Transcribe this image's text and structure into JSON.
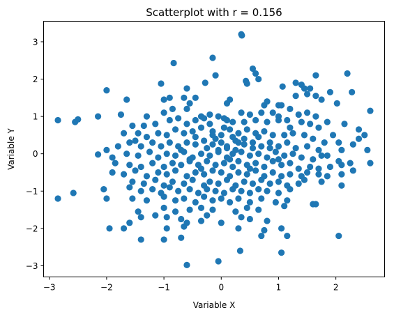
{
  "chart_data": {
    "type": "scatter",
    "title": "Scatterplot with r = 0.156",
    "xlabel": "Variable X",
    "ylabel": "Variable Y",
    "xlim": [
      -3.1,
      2.85
    ],
    "ylim": [
      -3.3,
      3.55
    ],
    "xticks": [
      -3,
      -2,
      -1,
      0,
      1,
      2
    ],
    "yticks": [
      -3,
      -2,
      -1,
      0,
      1,
      2,
      3
    ],
    "grid": false,
    "marker_color": "#1f77b4",
    "points": [
      [
        0.35,
        3.2
      ],
      [
        0.36,
        3.17
      ],
      [
        -0.15,
        2.57
      ],
      [
        -0.83,
        2.43
      ],
      [
        2.2,
        2.15
      ],
      [
        0.55,
        2.28
      ],
      [
        -0.1,
        2.1
      ],
      [
        1.65,
        2.1
      ],
      [
        0.6,
        2.15
      ],
      [
        -2.0,
        1.7
      ],
      [
        0.65,
        2.0
      ],
      [
        1.55,
        1.75
      ],
      [
        1.45,
        1.75
      ],
      [
        -1.05,
        1.88
      ],
      [
        1.3,
        1.9
      ],
      [
        1.4,
        1.85
      ],
      [
        0.43,
        1.95
      ],
      [
        0.45,
        1.88
      ],
      [
        2.28,
        1.65
      ],
      [
        1.07,
        1.8
      ],
      [
        -0.6,
        1.75
      ],
      [
        -0.28,
        1.9
      ],
      [
        0.1,
        1.35
      ],
      [
        1.3,
        1.55
      ],
      [
        -0.45,
        1.5
      ],
      [
        -1.65,
        1.45
      ],
      [
        -0.65,
        1.5
      ],
      [
        -0.9,
        1.5
      ],
      [
        -1.0,
        1.45
      ],
      [
        0.15,
        1.45
      ],
      [
        1.75,
        1.45
      ],
      [
        1.5,
        1.6
      ],
      [
        1.65,
        1.55
      ],
      [
        1.9,
        1.65
      ],
      [
        2.02,
        1.35
      ],
      [
        0.8,
        1.4
      ],
      [
        1.0,
        1.3
      ],
      [
        1.05,
        1.3
      ],
      [
        1.2,
        1.2
      ],
      [
        0.75,
        1.3
      ],
      [
        -0.6,
        1.2
      ],
      [
        -0.55,
        1.35
      ],
      [
        -1.45,
        0.55
      ],
      [
        -1.3,
        1.0
      ],
      [
        -1.0,
        1.1
      ],
      [
        -0.85,
        1.2
      ],
      [
        -0.35,
        1.0
      ],
      [
        -0.2,
        1.05
      ],
      [
        -0.05,
        1.0
      ],
      [
        0.35,
        1.1
      ],
      [
        0.5,
        1.05
      ],
      [
        0.7,
        1.1
      ],
      [
        0.9,
        1.1
      ],
      [
        1.0,
        1.0
      ],
      [
        1.15,
        0.9
      ],
      [
        1.35,
        1.05
      ],
      [
        1.5,
        1.1
      ],
      [
        1.65,
        1.0
      ],
      [
        1.85,
        0.85
      ],
      [
        2.15,
        0.8
      ],
      [
        2.4,
        0.65
      ],
      [
        2.5,
        0.5
      ],
      [
        2.4,
        0.4
      ],
      [
        2.6,
        1.15
      ],
      [
        -2.85,
        0.9
      ],
      [
        -2.5,
        0.92
      ],
      [
        -2.55,
        0.85
      ],
      [
        -2.15,
        1.0
      ],
      [
        -1.75,
        1.05
      ],
      [
        -1.55,
        0.75
      ],
      [
        -1.35,
        0.75
      ],
      [
        -1.15,
        0.8
      ],
      [
        -0.9,
        0.9
      ],
      [
        -0.75,
        0.95
      ],
      [
        -0.6,
        0.8
      ],
      [
        -0.45,
        0.9
      ],
      [
        -0.3,
        0.95
      ],
      [
        -0.2,
        0.8
      ],
      [
        0.05,
        0.95
      ],
      [
        0.2,
        0.85
      ],
      [
        0.4,
        0.85
      ],
      [
        0.6,
        0.9
      ],
      [
        0.8,
        0.85
      ],
      [
        1.0,
        0.9
      ],
      [
        1.2,
        0.7
      ],
      [
        1.4,
        0.85
      ],
      [
        1.55,
        0.8
      ],
      [
        1.7,
        0.7
      ],
      [
        1.95,
        0.5
      ],
      [
        2.05,
        0.3
      ],
      [
        -1.7,
        0.55
      ],
      [
        -1.5,
        0.35
      ],
      [
        -1.3,
        0.45
      ],
      [
        -1.1,
        0.55
      ],
      [
        -0.95,
        0.5
      ],
      [
        -0.8,
        0.65
      ],
      [
        -0.65,
        0.55
      ],
      [
        -0.5,
        0.6
      ],
      [
        -0.35,
        0.7
      ],
      [
        -0.15,
        0.6
      ],
      [
        0.0,
        0.5
      ],
      [
        0.15,
        0.65
      ],
      [
        0.3,
        0.55
      ],
      [
        0.45,
        0.65
      ],
      [
        0.6,
        0.55
      ],
      [
        0.75,
        0.6
      ],
      [
        0.9,
        0.5
      ],
      [
        1.1,
        0.5
      ],
      [
        1.25,
        0.55
      ],
      [
        1.45,
        0.5
      ],
      [
        1.6,
        0.4
      ],
      [
        1.8,
        0.3
      ],
      [
        -2.0,
        0.1
      ],
      [
        -1.8,
        0.2
      ],
      [
        -1.6,
        0.3
      ],
      [
        -1.4,
        0.2
      ],
      [
        -1.2,
        0.3
      ],
      [
        -1.05,
        0.2
      ],
      [
        -0.9,
        0.3
      ],
      [
        -0.75,
        0.2
      ],
      [
        -0.6,
        0.3
      ],
      [
        -0.45,
        0.25
      ],
      [
        -0.3,
        0.35
      ],
      [
        -0.15,
        0.25
      ],
      [
        0.0,
        0.3
      ],
      [
        0.1,
        0.2
      ],
      [
        0.25,
        0.35
      ],
      [
        0.4,
        0.25
      ],
      [
        0.55,
        0.3
      ],
      [
        0.7,
        0.2
      ],
      [
        0.85,
        0.3
      ],
      [
        1.0,
        0.2
      ],
      [
        1.15,
        0.3
      ],
      [
        1.3,
        0.15
      ],
      [
        1.5,
        0.2
      ],
      [
        1.7,
        0.1
      ],
      [
        1.85,
        -0.05
      ],
      [
        2.1,
        0.1
      ],
      [
        2.3,
        0.25
      ],
      [
        2.55,
        0.1
      ],
      [
        -2.15,
        -0.02
      ],
      [
        -1.9,
        -0.1
      ],
      [
        -1.65,
        0.0
      ],
      [
        -1.45,
        -0.05
      ],
      [
        -1.25,
        0.05
      ],
      [
        -1.1,
        -0.1
      ],
      [
        -0.95,
        0.0
      ],
      [
        -0.8,
        -0.05
      ],
      [
        -0.65,
        0.05
      ],
      [
        -0.5,
        -0.1
      ],
      [
        -0.35,
        0.0
      ],
      [
        -0.2,
        -0.05
      ],
      [
        -0.05,
        0.05
      ],
      [
        0.1,
        -0.1
      ],
      [
        0.2,
        0.0
      ],
      [
        0.35,
        0.05
      ],
      [
        0.5,
        -0.05
      ],
      [
        0.65,
        0.0
      ],
      [
        0.8,
        -0.1
      ],
      [
        0.95,
        0.05
      ],
      [
        1.1,
        -0.05
      ],
      [
        1.25,
        0.0
      ],
      [
        1.4,
        -0.1
      ],
      [
        1.6,
        -0.15
      ],
      [
        1.75,
        -0.05
      ],
      [
        2.05,
        -0.2
      ],
      [
        2.25,
        -0.25
      ],
      [
        2.6,
        -0.25
      ],
      [
        -1.85,
        -0.25
      ],
      [
        -1.6,
        -0.3
      ],
      [
        -1.4,
        -0.35
      ],
      [
        -1.2,
        -0.25
      ],
      [
        -1.0,
        -0.35
      ],
      [
        -0.85,
        -0.25
      ],
      [
        -0.7,
        -0.3
      ],
      [
        -0.55,
        -0.2
      ],
      [
        -0.4,
        -0.3
      ],
      [
        -0.25,
        -0.2
      ],
      [
        -0.1,
        -0.3
      ],
      [
        0.05,
        -0.25
      ],
      [
        0.2,
        -0.35
      ],
      [
        0.3,
        -0.2
      ],
      [
        0.45,
        -0.3
      ],
      [
        0.6,
        -0.25
      ],
      [
        0.75,
        -0.35
      ],
      [
        0.9,
        -0.2
      ],
      [
        1.05,
        -0.3
      ],
      [
        1.2,
        -0.25
      ],
      [
        1.35,
        -0.4
      ],
      [
        1.55,
        -0.35
      ],
      [
        1.7,
        -0.4
      ],
      [
        1.9,
        -0.35
      ],
      [
        2.1,
        -0.3
      ],
      [
        -1.9,
        -0.5
      ],
      [
        -1.7,
        -0.55
      ],
      [
        -1.5,
        -0.45
      ],
      [
        -1.3,
        -0.6
      ],
      [
        -1.1,
        -0.5
      ],
      [
        -0.95,
        -0.55
      ],
      [
        -0.8,
        -0.45
      ],
      [
        -0.6,
        -0.6
      ],
      [
        -0.45,
        -0.5
      ],
      [
        -0.3,
        -0.55
      ],
      [
        -0.15,
        -0.45
      ],
      [
        0.0,
        -0.5
      ],
      [
        0.15,
        -0.6
      ],
      [
        0.3,
        -0.5
      ],
      [
        0.45,
        -0.55
      ],
      [
        0.6,
        -0.45
      ],
      [
        0.75,
        -0.6
      ],
      [
        0.9,
        -0.5
      ],
      [
        1.05,
        -0.6
      ],
      [
        1.2,
        -0.55
      ],
      [
        1.4,
        -0.6
      ],
      [
        1.5,
        -0.5
      ],
      [
        1.7,
        -0.55
      ],
      [
        1.85,
        -0.6
      ],
      [
        2.1,
        -0.55
      ],
      [
        2.3,
        -0.45
      ],
      [
        -1.55,
        -0.75
      ],
      [
        -1.35,
        -0.8
      ],
      [
        -1.15,
        -0.7
      ],
      [
        -1.0,
        -0.85
      ],
      [
        -0.85,
        -0.75
      ],
      [
        -0.65,
        -0.8
      ],
      [
        -0.5,
        -0.7
      ],
      [
        -0.3,
        -0.85
      ],
      [
        -0.2,
        -0.75
      ],
      [
        -0.05,
        -0.8
      ],
      [
        0.1,
        -0.7
      ],
      [
        0.25,
        -0.85
      ],
      [
        0.4,
        -0.75
      ],
      [
        0.55,
        -0.8
      ],
      [
        0.7,
        -0.7
      ],
      [
        0.85,
        -0.8
      ],
      [
        1.0,
        -0.75
      ],
      [
        1.15,
        -0.85
      ],
      [
        1.35,
        -0.8
      ],
      [
        1.45,
        -0.7
      ],
      [
        1.75,
        -0.75
      ],
      [
        2.1,
        -0.85
      ],
      [
        -2.05,
        -0.95
      ],
      [
        -1.6,
        -0.9
      ],
      [
        -1.4,
        -1.0
      ],
      [
        -1.2,
        -0.95
      ],
      [
        -1.05,
        -1.05
      ],
      [
        -0.9,
        -0.9
      ],
      [
        -0.75,
        -1.0
      ],
      [
        -0.55,
        -0.95
      ],
      [
        -0.4,
        -1.05
      ],
      [
        -0.25,
        -0.95
      ],
      [
        -0.1,
        -1.0
      ],
      [
        0.05,
        -1.05
      ],
      [
        0.2,
        -0.95
      ],
      [
        0.35,
        -1.0
      ],
      [
        0.5,
        -1.05
      ],
      [
        0.65,
        -0.95
      ],
      [
        0.8,
        -1.0
      ],
      [
        1.0,
        -1.05
      ],
      [
        1.2,
        -0.95
      ],
      [
        -2.58,
        -1.05
      ],
      [
        -2.85,
        -1.2
      ],
      [
        -2.0,
        -1.2
      ],
      [
        -1.55,
        -1.2
      ],
      [
        -1.3,
        -1.25
      ],
      [
        -1.0,
        -1.15
      ],
      [
        -0.8,
        -1.25
      ],
      [
        -0.65,
        -1.2
      ],
      [
        -0.45,
        -1.3
      ],
      [
        -0.3,
        -1.15
      ],
      [
        -0.15,
        -1.25
      ],
      [
        0.0,
        -1.2
      ],
      [
        0.15,
        -1.3
      ],
      [
        0.3,
        -1.2
      ],
      [
        0.5,
        -1.3
      ],
      [
        0.7,
        -1.2
      ],
      [
        0.95,
        -1.3
      ],
      [
        1.15,
        -1.25
      ],
      [
        1.1,
        -1.4
      ],
      [
        1.6,
        -1.35
      ],
      [
        1.65,
        -1.35
      ],
      [
        -1.45,
        -1.55
      ],
      [
        -1.0,
        -1.45
      ],
      [
        -0.8,
        -1.55
      ],
      [
        -0.55,
        -1.5
      ],
      [
        -0.35,
        -1.45
      ],
      [
        -0.15,
        -1.5
      ],
      [
        0.25,
        -1.55
      ],
      [
        0.45,
        -1.45
      ],
      [
        0.65,
        -1.5
      ],
      [
        -1.6,
        -1.85
      ],
      [
        -1.4,
        -1.7
      ],
      [
        -1.15,
        -1.65
      ],
      [
        -0.95,
        -1.7
      ],
      [
        -0.7,
        -1.75
      ],
      [
        -0.6,
        -1.85
      ],
      [
        -0.35,
        -1.8
      ],
      [
        -0.25,
        -1.65
      ],
      [
        0.0,
        -1.85
      ],
      [
        0.35,
        -1.7
      ],
      [
        0.5,
        -1.75
      ],
      [
        0.8,
        -1.8
      ],
      [
        0.3,
        -2.0
      ],
      [
        -1.95,
        -2.0
      ],
      [
        -1.7,
        -2.0
      ],
      [
        -0.95,
        -2.0
      ],
      [
        -0.65,
        -1.95
      ],
      [
        0.75,
        -2.05
      ],
      [
        1.05,
        -2.0
      ],
      [
        -1.4,
        -2.3
      ],
      [
        -1.0,
        -2.3
      ],
      [
        -0.7,
        -2.25
      ],
      [
        0.7,
        -2.2
      ],
      [
        1.15,
        -2.2
      ],
      [
        2.05,
        -2.2
      ],
      [
        0.33,
        -2.6
      ],
      [
        1.05,
        -2.65
      ],
      [
        -0.05,
        -2.88
      ],
      [
        -0.6,
        -2.98
      ],
      [
        0.1,
        0.15
      ],
      [
        0.2,
        0.45
      ],
      [
        -0.1,
        0.4
      ],
      [
        0.05,
        0.7
      ],
      [
        0.25,
        0.1
      ],
      [
        -0.25,
        0.15
      ],
      [
        0.15,
        -0.15
      ],
      [
        0.4,
        0.4
      ],
      [
        -0.05,
        0.1
      ],
      [
        0.3,
        0.3
      ],
      [
        0.1,
        0.9
      ],
      [
        -0.7,
        0.1
      ],
      [
        0.55,
        0.15
      ],
      [
        0.65,
        0.45
      ],
      [
        -0.55,
        -0.15
      ],
      [
        0.85,
        0.15
      ],
      [
        -0.35,
        -0.4
      ],
      [
        1.0,
        -0.15
      ],
      [
        0.5,
        -0.4
      ],
      [
        -0.15,
        0.5
      ],
      [
        -0.45,
        0.45
      ]
    ]
  }
}
